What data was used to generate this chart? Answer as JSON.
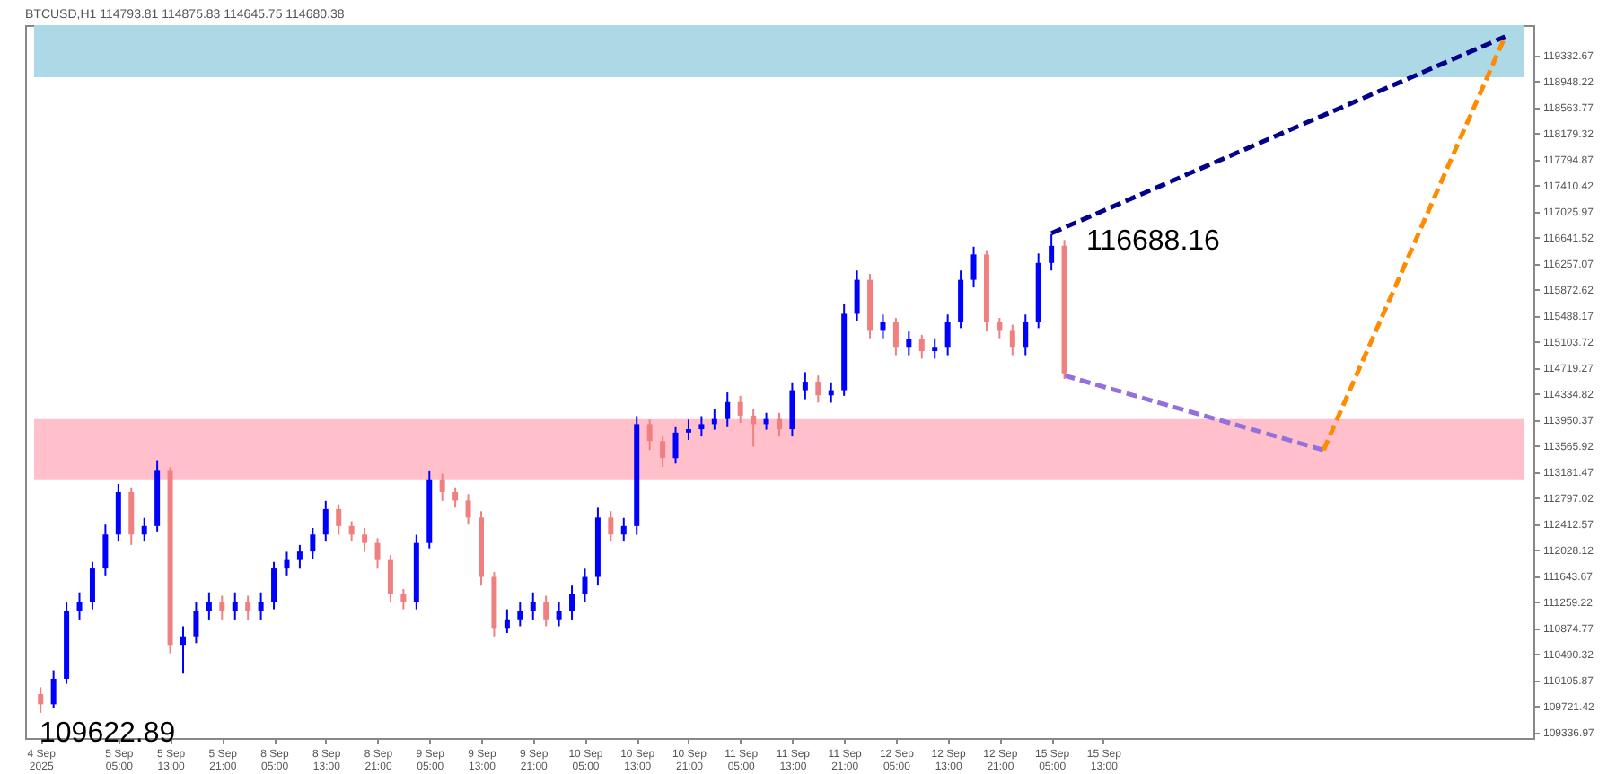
{
  "chart_data": {
    "type": "candlestick",
    "title": "BTCUSD,H1 114793.81 114875.83 114645.75 114680.38",
    "categories": [
      "4 Sep 2025",
      null,
      null,
      null,
      null,
      null,
      "5 Sep 05:00",
      null,
      null,
      null,
      "5 Sep 13:00",
      null,
      null,
      null,
      "5 Sep 21:00",
      null,
      null,
      null,
      "8 Sep 05:00",
      null,
      null,
      null,
      "8 Sep 13:00",
      null,
      null,
      null,
      "8 Sep 21:00",
      null,
      null,
      null,
      "9 Sep 05:00",
      null,
      null,
      null,
      "9 Sep 13:00",
      null,
      null,
      null,
      "9 Sep 21:00",
      null,
      null,
      null,
      "10 Sep 05:00",
      null,
      null,
      null,
      "10 Sep 13:00",
      null,
      null,
      null,
      "10 Sep 21:00",
      null,
      null,
      null,
      "11 Sep 05:00",
      null,
      null,
      null,
      "11 Sep 13:00",
      null,
      null,
      null,
      "11 Sep 21:00",
      null,
      null,
      null,
      "12 Sep 05:00",
      null,
      null,
      null,
      "12 Sep 13:00",
      null,
      null,
      null,
      "12 Sep 21:00",
      null,
      null,
      null,
      "15 Sep 05:00",
      null,
      null,
      null,
      "15 Sep 13:00",
      null,
      null,
      null,
      null,
      null,
      null,
      null,
      null,
      null,
      null,
      null,
      null,
      null,
      null,
      null,
      null,
      null,
      null,
      null,
      null,
      null,
      null,
      null,
      null,
      null,
      null,
      null,
      null,
      null,
      null,
      null,
      null
    ],
    "ohlc": [
      [
        109900,
        110000,
        109622.89,
        109749
      ],
      [
        109749,
        110250,
        109700,
        110125
      ],
      [
        110125,
        111250,
        110050,
        111127
      ],
      [
        111127,
        111400,
        111000,
        111252
      ],
      [
        111252,
        111850,
        111150,
        111753
      ],
      [
        111753,
        112400,
        111650,
        112254
      ],
      [
        112254,
        113000,
        112150,
        112880
      ],
      [
        112880,
        112950,
        112100,
        112254
      ],
      [
        112254,
        112500,
        112150,
        112379
      ],
      [
        112379,
        113350,
        112300,
        113206
      ],
      [
        113206,
        113250,
        110500,
        110626
      ],
      [
        110626,
        110900,
        110200,
        110751
      ],
      [
        110751,
        111250,
        110650,
        111127
      ],
      [
        111127,
        111400,
        111000,
        111252
      ],
      [
        111252,
        111350,
        111000,
        111127
      ],
      [
        111127,
        111400,
        111000,
        111252
      ],
      [
        111252,
        111350,
        111000,
        111127
      ],
      [
        111127,
        111400,
        111000,
        111252
      ],
      [
        111252,
        111850,
        111150,
        111753
      ],
      [
        111753,
        112000,
        111650,
        111878
      ],
      [
        111878,
        112100,
        111750,
        112004
      ],
      [
        112004,
        112350,
        111900,
        112254
      ],
      [
        112254,
        112750,
        112150,
        112630
      ],
      [
        112630,
        112700,
        112250,
        112379
      ],
      [
        112379,
        112450,
        112150,
        112254
      ],
      [
        112254,
        112350,
        112000,
        112129
      ],
      [
        112129,
        112200,
        111750,
        111878
      ],
      [
        111878,
        111950,
        111250,
        111377
      ],
      [
        111377,
        111450,
        111150,
        111252
      ],
      [
        111252,
        112250,
        111150,
        112129
      ],
      [
        112129,
        113200,
        112050,
        113056
      ],
      [
        113056,
        113150,
        112750,
        112880
      ],
      [
        112880,
        112950,
        112650,
        112755
      ],
      [
        112755,
        112850,
        112400,
        112505
      ],
      [
        112505,
        112600,
        111500,
        111628
      ],
      [
        111628,
        111700,
        110750,
        110876
      ],
      [
        110876,
        111150,
        110800,
        111002
      ],
      [
        111002,
        111250,
        110900,
        111127
      ],
      [
        111127,
        111400,
        111000,
        111252
      ],
      [
        111252,
        111350,
        110900,
        111002
      ],
      [
        111002,
        111250,
        110900,
        111127
      ],
      [
        111127,
        111500,
        111000,
        111377
      ],
      [
        111377,
        111750,
        111250,
        111628
      ],
      [
        111628,
        112650,
        111500,
        112505
      ],
      [
        112505,
        112600,
        112150,
        112254
      ],
      [
        112254,
        112500,
        112150,
        112379
      ],
      [
        112379,
        114000,
        112250,
        113882
      ],
      [
        113882,
        113950,
        113500,
        113632
      ],
      [
        113632,
        113700,
        113250,
        113381
      ],
      [
        113381,
        113850,
        113300,
        113757
      ],
      [
        113757,
        113950,
        113650,
        113807
      ],
      [
        113807,
        114000,
        113700,
        113882
      ],
      [
        113882,
        114100,
        113800,
        113958
      ],
      [
        113958,
        114350,
        113850,
        114208
      ],
      [
        114208,
        114300,
        113900,
        114008
      ],
      [
        114008,
        114100,
        113550,
        113882
      ],
      [
        113882,
        114050,
        113800,
        113958
      ],
      [
        113958,
        114050,
        113700,
        113807
      ],
      [
        113807,
        114500,
        113700,
        114383
      ],
      [
        114383,
        114650,
        114250,
        114509
      ],
      [
        114509,
        114600,
        114200,
        114308
      ],
      [
        114308,
        114500,
        114200,
        114383
      ],
      [
        114383,
        115650,
        114300,
        115511
      ],
      [
        115511,
        116150,
        115400,
        116012
      ],
      [
        116012,
        116100,
        115150,
        115260
      ],
      [
        115260,
        115500,
        115150,
        115385
      ],
      [
        115385,
        115450,
        114900,
        115010
      ],
      [
        115010,
        115250,
        114900,
        115135
      ],
      [
        115135,
        115200,
        114850,
        114960
      ],
      [
        114960,
        115150,
        114850,
        115010
      ],
      [
        115010,
        115500,
        114900,
        115385
      ],
      [
        115385,
        116150,
        115300,
        116012
      ],
      [
        116012,
        116500,
        115900,
        116387
      ],
      [
        116387,
        116450,
        115250,
        115385
      ],
      [
        115385,
        115450,
        115150,
        115260
      ],
      [
        115260,
        115350,
        114900,
        115010
      ],
      [
        115010,
        115500,
        114900,
        115385
      ],
      [
        115385,
        116400,
        115300,
        116262
      ],
      [
        116262,
        116688.16,
        116150,
        116513
      ],
      [
        116513,
        116600,
        114550,
        114634
      ],
      null,
      null,
      null,
      null,
      null,
      null,
      null,
      null,
      null,
      null,
      null,
      null,
      null,
      null,
      null,
      null,
      null,
      null,
      null,
      null,
      null,
      null,
      null,
      null,
      null,
      null,
      null,
      null,
      null,
      null,
      null,
      null,
      null,
      null,
      null
    ],
    "series": [
      {
        "type": "line",
        "color": "#00008b",
        "line_style": "dashed",
        "values": [
          null,
          null,
          null,
          null,
          null,
          null,
          null,
          null,
          null,
          null,
          null,
          null,
          null,
          null,
          null,
          null,
          null,
          null,
          null,
          null,
          null,
          null,
          null,
          null,
          null,
          null,
          null,
          null,
          null,
          null,
          null,
          null,
          null,
          null,
          null,
          null,
          null,
          null,
          null,
          null,
          null,
          null,
          null,
          null,
          null,
          null,
          null,
          null,
          null,
          null,
          null,
          null,
          null,
          null,
          null,
          null,
          null,
          null,
          null,
          null,
          null,
          null,
          null,
          null,
          null,
          null,
          null,
          null,
          null,
          null,
          null,
          null,
          null,
          null,
          null,
          null,
          null,
          null,
          116700,
          null,
          null,
          null,
          null,
          null,
          null,
          null,
          null,
          null,
          null,
          null,
          null,
          null,
          null,
          null,
          null,
          null,
          null,
          null,
          null,
          null,
          null,
          null,
          null,
          null,
          null,
          null,
          null,
          null,
          null,
          null,
          null,
          null,
          null,
          119600,
          null
        ]
      },
      {
        "type": "line",
        "color": "#9370db",
        "line_style": "dashed",
        "values": [
          null,
          null,
          null,
          null,
          null,
          null,
          null,
          null,
          null,
          null,
          null,
          null,
          null,
          null,
          null,
          null,
          null,
          null,
          null,
          null,
          null,
          null,
          null,
          null,
          null,
          null,
          null,
          null,
          null,
          null,
          null,
          null,
          null,
          null,
          null,
          null,
          null,
          null,
          null,
          null,
          null,
          null,
          null,
          null,
          null,
          null,
          null,
          null,
          null,
          null,
          null,
          null,
          null,
          null,
          null,
          null,
          null,
          null,
          null,
          null,
          null,
          null,
          null,
          null,
          null,
          null,
          null,
          null,
          null,
          null,
          null,
          null,
          null,
          null,
          null,
          null,
          null,
          null,
          null,
          114600,
          null,
          null,
          null,
          null,
          null,
          null,
          null,
          null,
          null,
          null,
          null,
          null,
          null,
          null,
          null,
          null,
          null,
          null,
          null,
          113500,
          null,
          null,
          null,
          null,
          null,
          null,
          null,
          null,
          null,
          null,
          null,
          null,
          null,
          null,
          null
        ]
      },
      {
        "type": "line",
        "color": "#ff8c00",
        "line_style": "dashed",
        "values": [
          null,
          null,
          null,
          null,
          null,
          null,
          null,
          null,
          null,
          null,
          null,
          null,
          null,
          null,
          null,
          null,
          null,
          null,
          null,
          null,
          null,
          null,
          null,
          null,
          null,
          null,
          null,
          null,
          null,
          null,
          null,
          null,
          null,
          null,
          null,
          null,
          null,
          null,
          null,
          null,
          null,
          null,
          null,
          null,
          null,
          null,
          null,
          null,
          null,
          null,
          null,
          null,
          null,
          null,
          null,
          null,
          null,
          null,
          null,
          null,
          null,
          null,
          null,
          null,
          null,
          null,
          null,
          null,
          null,
          null,
          null,
          null,
          null,
          null,
          null,
          null,
          null,
          null,
          null,
          null,
          null,
          null,
          null,
          null,
          null,
          null,
          null,
          null,
          null,
          null,
          null,
          null,
          null,
          null,
          null,
          null,
          null,
          null,
          null,
          113500,
          null,
          null,
          null,
          null,
          null,
          null,
          null,
          null,
          null,
          null,
          null,
          null,
          null,
          119600,
          null
        ]
      }
    ],
    "bands": [
      {
        "axis": "y",
        "from": 119000,
        "to": 119770,
        "color": "#add8e6"
      },
      {
        "axis": "y",
        "from": 113056,
        "to": 113958,
        "color": "#ffc0cb"
      }
    ],
    "annotations": [
      "116688.16",
      "109622.89"
    ],
    "ylim": [
      109250,
      119770
    ],
    "yticks": [
      109336.97,
      109721.42,
      110105.87,
      110490.32,
      110874.77,
      111259.22,
      111643.67,
      112028.12,
      112412.57,
      112797.02,
      113181.47,
      113565.92,
      113950.37,
      114334.82,
      114719.27,
      115103.72,
      115488.17,
      115872.62,
      116257.07,
      116641.52,
      117025.97,
      117410.42,
      117794.87,
      118179.32,
      118563.77,
      118948.22,
      119332.67
    ],
    "grid": false
  }
}
